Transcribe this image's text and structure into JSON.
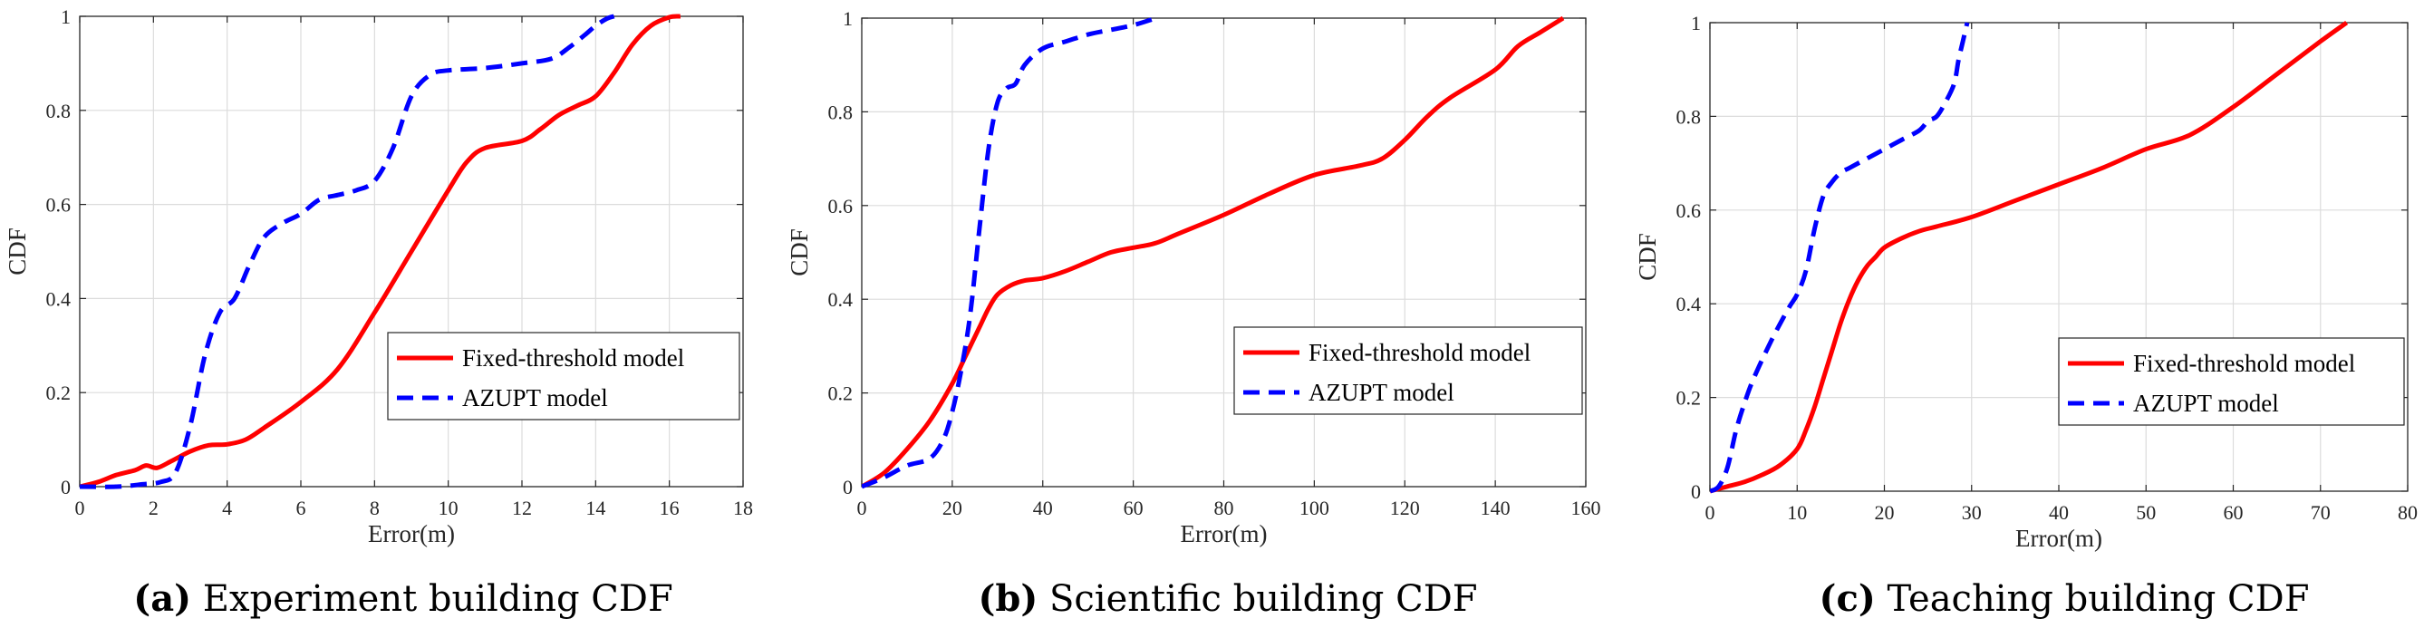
{
  "colors": {
    "fixed": "#ff0000",
    "azupt": "#0000ff",
    "axis": "#262626",
    "grid": "#dcdcdc"
  },
  "chart_data": [
    {
      "type": "line",
      "caption_label": "(a)",
      "caption": " Experiment building CDF",
      "xlabel": "Error(m)",
      "ylabel": "CDF",
      "xlim": [
        0,
        18
      ],
      "ylim": [
        0,
        1
      ],
      "xticks": [
        "0",
        "2",
        "4",
        "6",
        "8",
        "10",
        "12",
        "14",
        "16",
        "18"
      ],
      "yticks": [
        "0",
        "0.2",
        "0.4",
        "0.6",
        "0.8",
        "1"
      ],
      "legend_position": "lower-right",
      "grid": true,
      "series": [
        {
          "name": "Fixed-threshold model",
          "style": "solid",
          "x": [
            0,
            0.5,
            1,
            1.5,
            1.8,
            2.1,
            2.5,
            3,
            3.5,
            4,
            4.5,
            5,
            6,
            7,
            8,
            9,
            10,
            10.5,
            11,
            12,
            12.5,
            13,
            13.5,
            14,
            14.5,
            15,
            15.5,
            16,
            16.3
          ],
          "y": [
            0,
            0.01,
            0.025,
            0.035,
            0.045,
            0.04,
            0.055,
            0.075,
            0.088,
            0.09,
            0.1,
            0.125,
            0.18,
            0.25,
            0.37,
            0.5,
            0.63,
            0.69,
            0.72,
            0.735,
            0.76,
            0.79,
            0.81,
            0.83,
            0.88,
            0.94,
            0.98,
            0.998,
            1
          ]
        },
        {
          "name": "AZUPT model",
          "style": "dashed",
          "x": [
            0,
            1,
            1.7,
            2.2,
            2.6,
            3,
            3.4,
            3.8,
            4.2,
            4.6,
            5,
            5.5,
            6,
            6.5,
            7,
            7.5,
            8,
            8.5,
            9,
            9.5,
            10,
            11,
            12,
            12.8,
            13.3,
            13.7,
            14,
            14.3,
            14.5
          ],
          "y": [
            0,
            0,
            0.005,
            0.01,
            0.03,
            0.13,
            0.28,
            0.37,
            0.4,
            0.47,
            0.53,
            0.56,
            0.58,
            0.61,
            0.62,
            0.63,
            0.65,
            0.72,
            0.83,
            0.875,
            0.885,
            0.89,
            0.9,
            0.91,
            0.935,
            0.96,
            0.98,
            0.995,
            1
          ]
        }
      ]
    },
    {
      "type": "line",
      "caption_label": "(b)",
      "caption": " Scientific building CDF",
      "xlabel": "Error(m)",
      "ylabel": "CDF",
      "xlim": [
        0,
        160
      ],
      "ylim": [
        0,
        1
      ],
      "xticks": [
        "0",
        "20",
        "40",
        "60",
        "80",
        "100",
        "120",
        "140",
        "160"
      ],
      "yticks": [
        "0",
        "0.2",
        "0.4",
        "0.6",
        "0.8",
        "1"
      ],
      "legend_position": "lower-right",
      "grid": true,
      "series": [
        {
          "name": "Fixed-threshold model",
          "style": "solid",
          "x": [
            0,
            5,
            10,
            15,
            20,
            23,
            26,
            28,
            30,
            33,
            36,
            40,
            45,
            50,
            55,
            60,
            65,
            70,
            80,
            90,
            100,
            110,
            115,
            120,
            125,
            130,
            140,
            145,
            150,
            155
          ],
          "y": [
            0,
            0.03,
            0.08,
            0.14,
            0.22,
            0.28,
            0.34,
            0.38,
            0.41,
            0.43,
            0.44,
            0.445,
            0.46,
            0.48,
            0.5,
            0.51,
            0.52,
            0.54,
            0.58,
            0.625,
            0.665,
            0.685,
            0.7,
            0.74,
            0.79,
            0.83,
            0.89,
            0.94,
            0.97,
            1
          ]
        },
        {
          "name": "AZUPT model",
          "style": "dashed",
          "x": [
            0,
            5,
            10,
            15,
            18,
            20,
            22,
            24,
            26,
            28,
            30,
            32,
            34,
            36,
            40,
            45,
            50,
            55,
            60,
            65
          ],
          "y": [
            0,
            0.02,
            0.045,
            0.06,
            0.1,
            0.16,
            0.25,
            0.37,
            0.55,
            0.72,
            0.82,
            0.85,
            0.86,
            0.9,
            0.935,
            0.95,
            0.965,
            0.975,
            0.985,
            1
          ]
        }
      ]
    },
    {
      "type": "line",
      "caption_label": "(c)",
      "caption": " Teaching building CDF",
      "xlabel": "Error(m)",
      "ylabel": "CDF",
      "xlim": [
        0,
        80
      ],
      "ylim": [
        0,
        1
      ],
      "xticks": [
        "0",
        "10",
        "20",
        "30",
        "40",
        "50",
        "60",
        "70",
        "80"
      ],
      "yticks": [
        "0",
        "0.2",
        "0.4",
        "0.6",
        "0.8",
        "1"
      ],
      "legend_position": "lower-right",
      "grid": true,
      "series": [
        {
          "name": "Fixed-threshold model",
          "style": "solid",
          "x": [
            0,
            2,
            4,
            6,
            8,
            10,
            11,
            12,
            13,
            14,
            15,
            16,
            17,
            18,
            19,
            20,
            22,
            24,
            26,
            30,
            35,
            40,
            45,
            50,
            55,
            60,
            65,
            70,
            73
          ],
          "y": [
            0,
            0.01,
            0.02,
            0.035,
            0.055,
            0.09,
            0.13,
            0.18,
            0.24,
            0.3,
            0.36,
            0.41,
            0.45,
            0.48,
            0.5,
            0.52,
            0.54,
            0.555,
            0.565,
            0.585,
            0.62,
            0.655,
            0.69,
            0.73,
            0.76,
            0.82,
            0.89,
            0.96,
            1
          ]
        },
        {
          "name": "AZUPT model",
          "style": "dashed",
          "x": [
            0,
            1,
            2,
            3,
            4,
            5,
            7,
            9,
            10,
            11,
            12,
            13,
            14,
            15,
            16,
            18,
            20,
            22,
            24,
            25,
            26,
            27,
            28,
            28.5,
            29,
            29.5
          ],
          "y": [
            0,
            0.01,
            0.05,
            0.13,
            0.19,
            0.24,
            0.32,
            0.39,
            0.42,
            0.47,
            0.56,
            0.63,
            0.66,
            0.68,
            0.69,
            0.71,
            0.73,
            0.75,
            0.77,
            0.79,
            0.8,
            0.83,
            0.87,
            0.92,
            0.96,
            1
          ]
        }
      ]
    }
  ]
}
